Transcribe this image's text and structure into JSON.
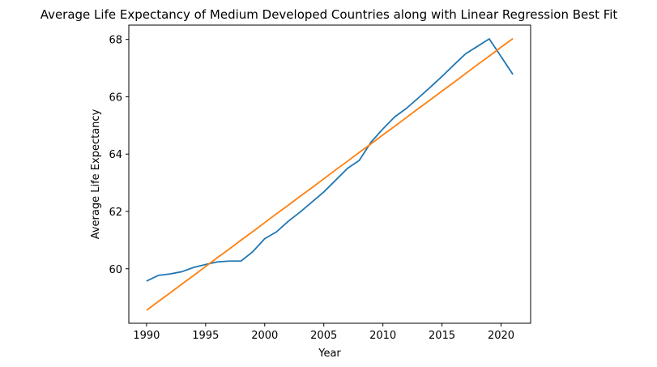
{
  "chart_data": {
    "type": "line",
    "title": "Average Life Expectancy of Medium Developed Countries along with Linear Regression Best Fit",
    "xlabel": "Year",
    "ylabel": "Average Life Expectancy",
    "xlim": [
      1988.5,
      2022.5
    ],
    "ylim": [
      58.1,
      68.5
    ],
    "x_ticks": [
      1990,
      1995,
      2000,
      2005,
      2010,
      2015,
      2020
    ],
    "y_ticks": [
      60,
      62,
      64,
      66,
      68
    ],
    "grid": false,
    "legend": "none",
    "x": [
      1990,
      1991,
      1992,
      1993,
      1994,
      1995,
      1996,
      1997,
      1998,
      1999,
      2000,
      2001,
      2002,
      2003,
      2004,
      2005,
      2006,
      2007,
      2008,
      2009,
      2010,
      2011,
      2012,
      2013,
      2014,
      2015,
      2016,
      2017,
      2018,
      2019,
      2020,
      2021
    ],
    "series": [
      {
        "color": "#1f77b4",
        "values": [
          59.57,
          59.77,
          59.82,
          59.9,
          60.05,
          60.15,
          60.24,
          60.27,
          60.27,
          60.6,
          61.05,
          61.29,
          61.66,
          61.98,
          62.33,
          62.68,
          63.09,
          63.5,
          63.78,
          64.42,
          64.88,
          65.3,
          65.6,
          65.96,
          66.33,
          66.71,
          67.11,
          67.5,
          67.76,
          68.02,
          67.4,
          66.78
        ]
      },
      {
        "color": "#ff7f0e",
        "values": [
          58.55,
          58.86,
          59.16,
          59.47,
          59.77,
          60.08,
          60.39,
          60.69,
          61.0,
          61.3,
          61.61,
          61.92,
          62.22,
          62.53,
          62.83,
          63.14,
          63.45,
          63.75,
          64.06,
          64.36,
          64.67,
          64.97,
          65.28,
          65.59,
          65.89,
          66.2,
          66.5,
          66.81,
          67.12,
          67.42,
          67.73,
          68.03
        ]
      }
    ]
  }
}
